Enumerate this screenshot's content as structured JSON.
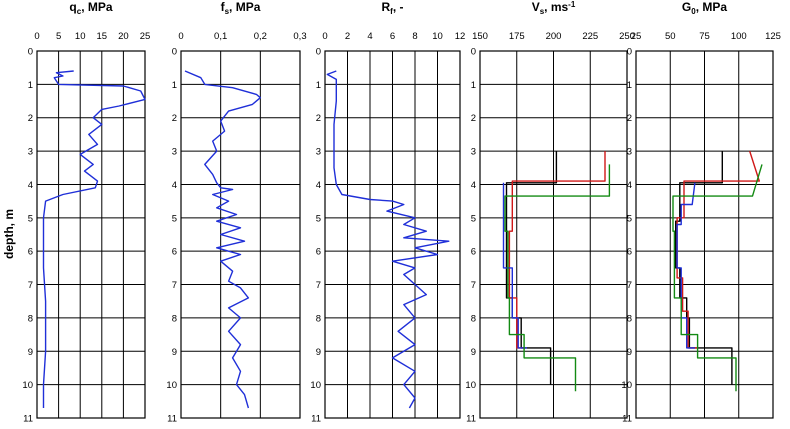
{
  "y_axis_label": "depth, m",
  "colors": {
    "blue": "#1f2fd8",
    "black": "#000000",
    "red": "#d01818",
    "green": "#138a13"
  },
  "chart_data": [
    {
      "type": "line",
      "id": "qc",
      "title_main": "q",
      "title_sub": "c",
      "title_rest": ", MPa",
      "xlim": [
        0,
        25
      ],
      "xticks": [
        "0",
        "5",
        "10",
        "15",
        "20",
        "25"
      ],
      "xtick_vals": [
        0,
        5,
        10,
        15,
        20,
        25
      ],
      "ylim": [
        0,
        11
      ],
      "yticks": [
        "0",
        "1",
        "2",
        "3",
        "4",
        "5",
        "6",
        "7",
        "8",
        "9",
        "10",
        "11"
      ],
      "grid": true,
      "series": [
        {
          "color": "blue",
          "step": false,
          "points": [
            [
              8.5,
              0.6
            ],
            [
              4.5,
              0.65
            ],
            [
              6,
              0.75
            ],
            [
              4,
              0.8
            ],
            [
              5,
              1.0
            ],
            [
              20,
              1.05
            ],
            [
              24,
              1.2
            ],
            [
              25,
              1.45
            ],
            [
              19,
              1.65
            ],
            [
              15,
              1.75
            ],
            [
              13,
              2.0
            ],
            [
              15,
              2.2
            ],
            [
              12,
              2.5
            ],
            [
              14,
              2.8
            ],
            [
              10,
              3.1
            ],
            [
              13,
              3.4
            ],
            [
              11,
              3.6
            ],
            [
              14,
              3.9
            ],
            [
              13.5,
              4.1
            ],
            [
              6,
              4.3
            ],
            [
              2,
              4.5
            ],
            [
              1.5,
              5.0
            ],
            [
              1.5,
              6.5
            ],
            [
              2,
              7.5
            ],
            [
              2,
              9.0
            ],
            [
              1.5,
              10.0
            ],
            [
              1.5,
              10.7
            ]
          ]
        }
      ]
    },
    {
      "type": "line",
      "id": "fs",
      "title_main": "f",
      "title_sub": "s",
      "title_rest": ", MPa",
      "xlim": [
        0,
        0.3
      ],
      "xticks": [
        "0",
        "0,1",
        "0,2",
        "0,3"
      ],
      "xtick_vals": [
        0,
        0.1,
        0.2,
        0.3
      ],
      "ylim": [
        0,
        11
      ],
      "yticks": [
        "0",
        "1",
        "2",
        "3",
        "4",
        "5",
        "6",
        "7",
        "8",
        "9",
        "10",
        "11"
      ],
      "grid": true,
      "series": [
        {
          "color": "blue",
          "step": false,
          "points": [
            [
              0.01,
              0.6
            ],
            [
              0.05,
              0.8
            ],
            [
              0.06,
              1.0
            ],
            [
              0.13,
              1.1
            ],
            [
              0.19,
              1.3
            ],
            [
              0.2,
              1.4
            ],
            [
              0.18,
              1.6
            ],
            [
              0.12,
              1.8
            ],
            [
              0.1,
              2.1
            ],
            [
              0.11,
              2.4
            ],
            [
              0.08,
              2.7
            ],
            [
              0.09,
              3.0
            ],
            [
              0.06,
              3.4
            ],
            [
              0.08,
              3.7
            ],
            [
              0.09,
              3.95
            ],
            [
              0.1,
              4.1
            ],
            [
              0.13,
              4.15
            ],
            [
              0.08,
              4.3
            ],
            [
              0.12,
              4.5
            ],
            [
              0.09,
              4.7
            ],
            [
              0.14,
              4.9
            ],
            [
              0.09,
              5.1
            ],
            [
              0.15,
              5.3
            ],
            [
              0.1,
              5.5
            ],
            [
              0.16,
              5.7
            ],
            [
              0.09,
              5.9
            ],
            [
              0.15,
              6.1
            ],
            [
              0.1,
              6.3
            ],
            [
              0.13,
              6.6
            ],
            [
              0.12,
              6.9
            ],
            [
              0.15,
              7.1
            ],
            [
              0.17,
              7.4
            ],
            [
              0.12,
              7.7
            ],
            [
              0.15,
              8.0
            ],
            [
              0.12,
              8.4
            ],
            [
              0.15,
              8.8
            ],
            [
              0.13,
              9.2
            ],
            [
              0.15,
              9.6
            ],
            [
              0.14,
              10.0
            ],
            [
              0.16,
              10.3
            ],
            [
              0.17,
              10.7
            ]
          ]
        }
      ]
    },
    {
      "type": "line",
      "id": "rf",
      "title_main": "R",
      "title_sub": "f",
      "title_rest": ", -",
      "xlim": [
        0,
        12
      ],
      "xticks": [
        "0",
        "2",
        "4",
        "6",
        "8",
        "10",
        "12"
      ],
      "xtick_vals": [
        0,
        2,
        4,
        6,
        8,
        10,
        12
      ],
      "ylim": [
        0,
        11
      ],
      "yticks": [
        "0",
        "1",
        "2",
        "3",
        "4",
        "5",
        "6",
        "7",
        "8",
        "9",
        "10",
        "11"
      ],
      "grid": true,
      "series": [
        {
          "color": "blue",
          "step": false,
          "points": [
            [
              1,
              0.6
            ],
            [
              0.2,
              0.7
            ],
            [
              1,
              0.85
            ],
            [
              1,
              1.5
            ],
            [
              0.8,
              2.2
            ],
            [
              0.8,
              3.5
            ],
            [
              1,
              4.0
            ],
            [
              1.5,
              4.3
            ],
            [
              4,
              4.45
            ],
            [
              6,
              4.5
            ],
            [
              7,
              4.6
            ],
            [
              5.5,
              4.8
            ],
            [
              8,
              5.0
            ],
            [
              7,
              5.2
            ],
            [
              9,
              5.4
            ],
            [
              7,
              5.6
            ],
            [
              11,
              5.7
            ],
            [
              8,
              5.9
            ],
            [
              10,
              6.1
            ],
            [
              6,
              6.3
            ],
            [
              8,
              6.5
            ],
            [
              7,
              6.7
            ],
            [
              8,
              7.0
            ],
            [
              9,
              7.3
            ],
            [
              7,
              7.6
            ],
            [
              8,
              8.0
            ],
            [
              6.5,
              8.4
            ],
            [
              8,
              8.8
            ],
            [
              6,
              9.2
            ],
            [
              8,
              9.6
            ],
            [
              7,
              10.0
            ],
            [
              8,
              10.4
            ],
            [
              7.5,
              10.7
            ]
          ]
        }
      ]
    },
    {
      "type": "line",
      "id": "vs",
      "title_main": "V",
      "title_sub": "s",
      "title_rest": ", ms",
      "title_sup": "-1",
      "xlim": [
        150,
        250
      ],
      "xticks": [
        "150",
        "175",
        "200",
        "225",
        "250"
      ],
      "xtick_vals": [
        150,
        175,
        200,
        225,
        250
      ],
      "ylim": [
        0,
        11
      ],
      "yticks": [
        "0",
        "1",
        "2",
        "3",
        "4",
        "5",
        "6",
        "7",
        "8",
        "9",
        "10",
        "11"
      ],
      "grid": true,
      "series": [
        {
          "color": "black",
          "step": true,
          "points": [
            [
              202,
              3.0
            ],
            [
              202,
              3.95
            ],
            [
              168,
              3.95
            ],
            [
              168,
              7.4
            ],
            [
              172,
              7.4
            ],
            [
              172,
              8.0
            ],
            [
              178,
              8.0
            ],
            [
              178,
              8.9
            ],
            [
              198,
              8.9
            ],
            [
              198,
              10.0
            ]
          ]
        },
        {
          "color": "red",
          "step": true,
          "points": [
            [
              235,
              3.0
            ],
            [
              235,
              3.9
            ],
            [
              172,
              3.9
            ],
            [
              172,
              5.4
            ],
            [
              170,
              5.4
            ],
            [
              170,
              7.4
            ],
            [
              175,
              7.4
            ],
            [
              175,
              8.9
            ],
            [
              181,
              8.9
            ]
          ]
        },
        {
          "color": "blue",
          "step": true,
          "points": [
            [
              166,
              3.95
            ],
            [
              166,
              6.5
            ],
            [
              172,
              6.5
            ],
            [
              172,
              8.0
            ],
            [
              176,
              8.0
            ],
            [
              176,
              8.9
            ],
            [
              182,
              8.9
            ]
          ]
        },
        {
          "color": "green",
          "step": true,
          "points": [
            [
              238,
              3.4
            ],
            [
              238,
              4.35
            ],
            [
              167,
              4.35
            ],
            [
              167,
              5.4
            ],
            [
              169,
              5.4
            ],
            [
              169,
              7.4
            ],
            [
              170,
              7.4
            ],
            [
              170,
              8.5
            ],
            [
              180,
              8.5
            ],
            [
              180,
              9.2
            ],
            [
              215,
              9.2
            ],
            [
              215,
              10.2
            ]
          ]
        }
      ]
    },
    {
      "type": "line",
      "id": "g0",
      "title_main": "G",
      "title_sub": "0",
      "title_rest": ", MPa",
      "xlim": [
        25,
        125
      ],
      "xticks": [
        "25",
        "50",
        "75",
        "100",
        "125"
      ],
      "xtick_vals": [
        25,
        50,
        75,
        100,
        125
      ],
      "ylim": [
        0,
        11
      ],
      "yticks": [
        "0",
        "1",
        "2",
        "3",
        "4",
        "5",
        "6",
        "7",
        "8",
        "9",
        "10",
        "11"
      ],
      "grid": true,
      "series": [
        {
          "color": "black",
          "step": true,
          "points": [
            [
              88,
              3.0
            ],
            [
              88,
              3.95
            ],
            [
              57,
              3.95
            ],
            [
              57,
              5.1
            ],
            [
              54,
              5.1
            ],
            [
              54,
              6.5
            ],
            [
              57,
              6.5
            ],
            [
              57,
              7.4
            ],
            [
              62,
              7.4
            ],
            [
              62,
              8.0
            ],
            [
              64,
              8.0
            ],
            [
              64,
              8.9
            ],
            [
              95,
              8.9
            ],
            [
              95,
              10.0
            ]
          ]
        },
        {
          "color": "red",
          "step": true,
          "points": [
            [
              108,
              3.0
            ],
            [
              115,
              3.9
            ],
            [
              60,
              3.9
            ],
            [
              60,
              5.0
            ],
            [
              55,
              5.0
            ],
            [
              55,
              6.8
            ],
            [
              59,
              6.8
            ],
            [
              59,
              7.8
            ],
            [
              63,
              7.8
            ],
            [
              63,
              8.9
            ],
            [
              70,
              8.9
            ]
          ]
        },
        {
          "color": "blue",
          "step": true,
          "points": [
            [
              68,
              3.95
            ],
            [
              66,
              4.6
            ],
            [
              58,
              4.6
            ],
            [
              58,
              5.2
            ],
            [
              55,
              5.2
            ],
            [
              55,
              6.5
            ],
            [
              58,
              6.5
            ],
            [
              58,
              8.0
            ],
            [
              62,
              8.0
            ],
            [
              62,
              8.9
            ],
            [
              68,
              8.9
            ]
          ]
        },
        {
          "color": "green",
          "step": true,
          "points": [
            [
              117,
              3.4
            ],
            [
              110,
              4.35
            ],
            [
              52,
              4.35
            ],
            [
              52,
              5.4
            ],
            [
              53,
              5.4
            ],
            [
              53,
              7.4
            ],
            [
              58,
              7.4
            ],
            [
              58,
              8.5
            ],
            [
              70,
              8.5
            ],
            [
              70,
              9.2
            ],
            [
              98,
              9.2
            ],
            [
              98,
              10.2
            ]
          ]
        }
      ]
    }
  ]
}
